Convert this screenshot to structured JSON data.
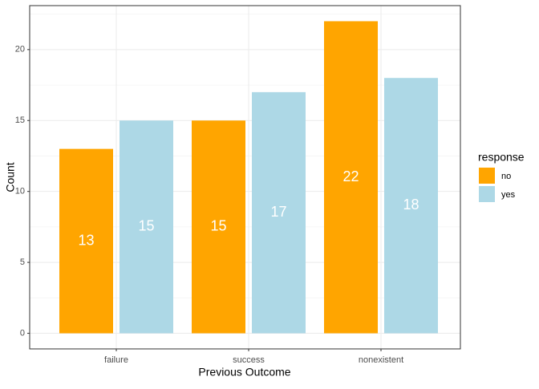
{
  "chart_data": {
    "type": "bar",
    "categories": [
      "failure",
      "success",
      "nonexistent"
    ],
    "series": [
      {
        "name": "no",
        "color": "#ffa500",
        "values": [
          13,
          15,
          22
        ]
      },
      {
        "name": "yes",
        "color": "#add8e6",
        "values": [
          15,
          17,
          18
        ]
      }
    ],
    "x_label": "Previous Outcome",
    "y_label": "Count",
    "legend_title": "response",
    "ylim": [
      -1.1,
      23.1
    ],
    "yticks": [
      0,
      5,
      10,
      15,
      20
    ],
    "grid": true,
    "legend_position": "right"
  }
}
